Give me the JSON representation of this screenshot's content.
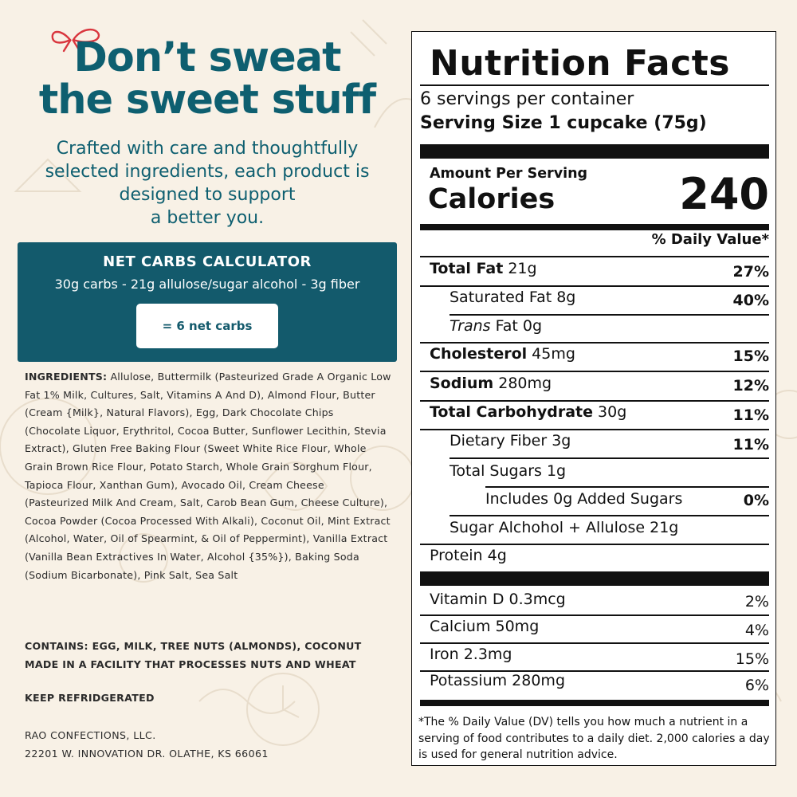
{
  "headline": {
    "line1": "Don’t sweat",
    "line2": "the sweet stuff"
  },
  "tagline": [
    "Crafted with care and thoughtfully",
    "selected ingredients, each product is",
    "designed to support",
    "a better you."
  ],
  "calculator": {
    "title": "NET CARBS CALCULATOR",
    "formula": "30g carbs - 21g allulose/sugar alcohol - 3g fiber",
    "result": "= 6 net carbs"
  },
  "ingredients": {
    "label": "INGREDIENTS:",
    "text": "Allulose, Buttermilk (Pasteurized Grade A Organic Low Fat 1% Milk, Cultures, Salt, Vitamins A And D), Almond Flour, Butter (Cream {Milk}, Natural Flavors), Egg, Dark Chocolate Chips (Chocolate Liquor, Erythritol, Cocoa Butter, Sunflower Lecithin, Stevia Extract), Gluten Free Baking Flour (Sweet White Rice Flour, Whole Grain Brown Rice Flour, Potato Starch, Whole Grain Sorghum Flour, Tapioca Flour, Xanthan Gum), Avocado Oil, Cream Cheese (Pasteurized Milk And Cream, Salt, Carob Bean Gum, Cheese Culture), Cocoa Powder (Cocoa Processed With Alkali), Coconut Oil, Mint Extract (Alcohol, Water, Oil of Spearmint, & Oil of Peppermint), Vanilla Extract (Vanilla Bean Extractives In Water, Alcohol {35%}), Baking Soda (Sodium Bicarbonate), Pink Salt, Sea Salt"
  },
  "contains": {
    "line1": "CONTAINS: EGG, MILK, TREE NUTS (ALMONDS), COCONUT",
    "line2": "MADE IN A FACILITY THAT PROCESSES NUTS AND WHEAT"
  },
  "storage": "KEEP REFRIDGERATED",
  "company": {
    "name": "RAO CONFECTIONS, LLC.",
    "address": "22201 W. INNOVATION DR. OLATHE, KS 66061"
  },
  "nutrition": {
    "title": "Nutrition Facts",
    "servings": "6 servings per container",
    "serving_size": "Serving Size 1 cupcake (75g)",
    "amount_per_serving": "Amount Per Serving",
    "calories_label": "Calories",
    "calories_value": "240",
    "dv_header": "% Daily Value*",
    "rows": [
      {
        "bold": "Total Fat",
        "amount": " 21g",
        "dv": "27%"
      },
      {
        "bold": "",
        "amount": "Saturated Fat 8g",
        "dv": "40%"
      },
      {
        "italic": "Trans",
        "amount": " Fat 0g",
        "dv": ""
      },
      {
        "bold": "Cholesterol",
        "amount": " 45mg",
        "dv": "15%"
      },
      {
        "bold": "Sodium",
        "amount": " 280mg",
        "dv": "12%"
      },
      {
        "bold": "Total Carbohydrate",
        "amount": " 30g",
        "dv": "11%"
      },
      {
        "bold": "",
        "amount": "Dietary Fiber 3g",
        "dv": "11%"
      },
      {
        "bold": "",
        "amount": "Total Sugars 1g",
        "dv": ""
      },
      {
        "bold": "",
        "amount": "Includes 0g Added Sugars",
        "dv": "0%"
      },
      {
        "bold": "",
        "amount": "Sugar Alchohol + Allulose 21g",
        "dv": ""
      },
      {
        "bold": "",
        "amount": "Protein 4g",
        "dv": ""
      }
    ],
    "vitamins": [
      {
        "label": "Vitamin D 0.3mcg",
        "dv": "2%"
      },
      {
        "label": "Calcium 50mg",
        "dv": "4%"
      },
      {
        "label": "Iron 2.3mg",
        "dv": "15%"
      },
      {
        "label": "Potassium 280mg",
        "dv": "6%"
      }
    ],
    "footnote": "*The % Daily Value (DV) tells you how much a nutrient in a serving of food contributes to a daily diet. 2,000 calories a day is used for general nutrition advice."
  },
  "colors": {
    "background": "#f8f1e6",
    "teal": "#0e5f70",
    "calculator_bg": "#135a6c",
    "bow": "#d9363e"
  }
}
